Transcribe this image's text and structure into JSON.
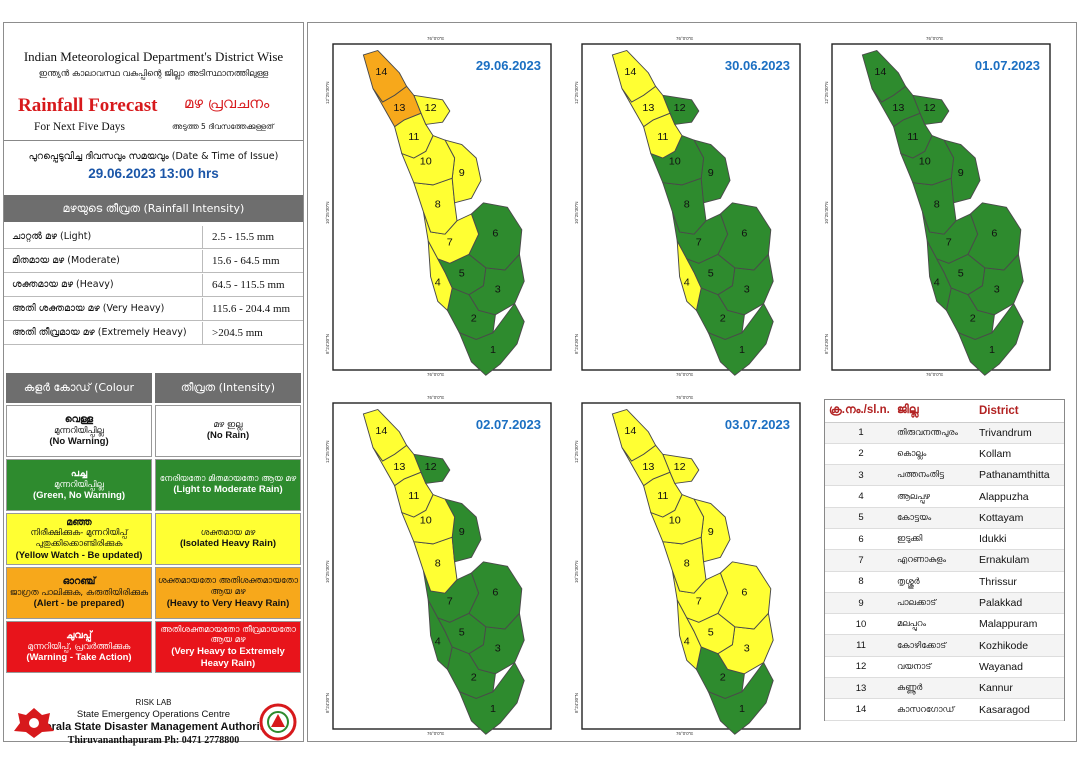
{
  "header": {
    "title": "Indian Meteorological Department's District Wise",
    "title_ml": "ഇന്ത്യൻ കാലാവസ്ഥ വകുപ്പിന്റെ ജില്ലാ അടിസ്ഥാനത്തിലുള്ള",
    "rainfall_forecast": "Rainfall Forecast",
    "rainfall_forecast_ml": "മഴ പ്രവചനം",
    "next_days": "For Next Five Days",
    "next_days_ml": "അടുത്ത 5 ദിവസത്തേക്കുള്ളത്"
  },
  "issue": {
    "label": "പുറപ്പെടുവിച്ച ദിവസവും സമയവും (Date & Time of Issue)",
    "value": "29.06.2023 13:00 hrs"
  },
  "intensity": {
    "title": "മഴയുടെ തീവ്രത (Rainfall Intensity)",
    "rows": [
      {
        "name": "ചാറ്റൽ മഴ (Light)",
        "range": "2.5 - 15.5 mm"
      },
      {
        "name": "മിതമായ മഴ (Moderate)",
        "range": "15.6 - 64.5 mm"
      },
      {
        "name": "ശക്തമായ മഴ (Heavy)",
        "range": "64.5 - 115.5 mm"
      },
      {
        "name": "അതി ശക്തമായ മഴ (Very Heavy)",
        "range": "115.6 - 204.4 mm"
      },
      {
        "name": "അതി തീവ്രമായ മഴ (Extremely Heavy)",
        "range": ">204.5 mm"
      }
    ]
  },
  "colour_code": {
    "left_head": "കളർ കോഡ് (Colour Code)",
    "right_head": "തീവ്രത (Intensity)",
    "rows": [
      {
        "color": "#ffffff",
        "text_color": "#111111",
        "c1": "വെള്ള",
        "c2": "മുന്നറിയിപ്പില്ല",
        "c3": "(No Warning)",
        "i1": "മഴ ഇല്ല",
        "i2": "(No Rain)"
      },
      {
        "color": "#2e8b2e",
        "text_color": "#ffffff",
        "c1": "പച്ച",
        "c2": "മുന്നറിയിപ്പില്ല",
        "c3": "(Green, No Warning)",
        "i1": "നേരിയതോ മിതമായതോ ആയ മഴ",
        "i2": "(Light to Moderate Rain)"
      },
      {
        "color": "#ffff33",
        "text_color": "#111111",
        "c1": "മഞ്ഞ",
        "c2": "നിരീക്ഷിക്കുക- മുന്നറിയിപ്പ് പുതുക്കിക്കൊണ്ടിരിക്കുക",
        "c3": "(Yellow Watch - Be updated)",
        "i1": "ശക്തമായ മഴ",
        "i2": "(Isolated Heavy Rain)"
      },
      {
        "color": "#f7a81b",
        "text_color": "#111111",
        "c1": "ഓറഞ്ച്",
        "c2": "ജാഗ്രത പാലിക്കുക, കരുതിയിരിക്കുക",
        "c3": "(Alert - be prepared)",
        "i1": "ശക്തമായതോ അതിശക്തമായതോ ആയ മഴ",
        "i2": "(Heavy to Very Heavy Rain)"
      },
      {
        "color": "#e8141b",
        "text_color": "#ffffff",
        "c1": "ചുവപ്പ്",
        "c2": "മുന്നറിയിപ്പ്, പ്രവർത്തിക്കുക",
        "c3": "(Warning - Take Action)",
        "i1": "അതിശക്തമായതോ തീവ്രമായതോ ആയ മഴ",
        "i2": "(Very Heavy to Extremely Heavy Rain)"
      }
    ]
  },
  "footer": {
    "risk_lab": "RISK LAB",
    "seoc": "State Emergency Operations Centre",
    "ksdma": "Kerala State Disaster Management Authority",
    "address": "Thiruvananthapuram Ph: 0471 2778800"
  },
  "coords": {
    "lon_top": "76°0'0\"E",
    "lon_bottom": "76°0'0\"E",
    "lat_a": "12°25'30\"N",
    "lat_b": "10°25'30\"N",
    "lat_c": "8°24'30\"N"
  },
  "colors": {
    "green": "#2e8b2e",
    "yellow": "#ffff33",
    "orange": "#f7a81b",
    "white": "#ffffff"
  },
  "maps": [
    {
      "date": "29.06.2023",
      "colors": {
        "1": "green",
        "2": "green",
        "3": "green",
        "4": "yellow",
        "5": "green",
        "6": "green",
        "7": "yellow",
        "8": "yellow",
        "9": "yellow",
        "10": "yellow",
        "11": "yellow",
        "12": "yellow",
        "13": "orange",
        "14": "orange"
      }
    },
    {
      "date": "30.06.2023",
      "colors": {
        "1": "green",
        "2": "green",
        "3": "green",
        "4": "yellow",
        "5": "green",
        "6": "green",
        "7": "green",
        "8": "green",
        "9": "green",
        "10": "green",
        "11": "yellow",
        "12": "green",
        "13": "yellow",
        "14": "yellow"
      }
    },
    {
      "date": "01.07.2023",
      "colors": {
        "1": "green",
        "2": "green",
        "3": "green",
        "4": "green",
        "5": "green",
        "6": "green",
        "7": "green",
        "8": "green",
        "9": "green",
        "10": "green",
        "11": "green",
        "12": "green",
        "13": "green",
        "14": "green"
      }
    },
    {
      "date": "02.07.2023",
      "colors": {
        "1": "green",
        "2": "green",
        "3": "green",
        "4": "green",
        "5": "green",
        "6": "green",
        "7": "green",
        "8": "yellow",
        "9": "green",
        "10": "yellow",
        "11": "yellow",
        "12": "green",
        "13": "yellow",
        "14": "yellow"
      }
    },
    {
      "date": "03.07.2023",
      "colors": {
        "1": "green",
        "2": "green",
        "3": "yellow",
        "4": "yellow",
        "5": "yellow",
        "6": "yellow",
        "7": "yellow",
        "8": "yellow",
        "9": "yellow",
        "10": "yellow",
        "11": "yellow",
        "12": "yellow",
        "13": "yellow",
        "14": "yellow"
      }
    }
  ],
  "districts": {
    "headers": {
      "no": "ക്ര.നം./sl.n.",
      "ml": "ജില്ല",
      "en": "District"
    },
    "rows": [
      {
        "no": "1",
        "ml": "തിരുവനന്തപുരം",
        "en": "Trivandrum"
      },
      {
        "no": "2",
        "ml": "കൊല്ലം",
        "en": "Kollam"
      },
      {
        "no": "3",
        "ml": "പത്തനംതിട്ട",
        "en": "Pathanamthitta"
      },
      {
        "no": "4",
        "ml": "ആലപ്പുഴ",
        "en": "Alappuzha"
      },
      {
        "no": "5",
        "ml": "കോട്ടയം",
        "en": "Kottayam"
      },
      {
        "no": "6",
        "ml": "ഇടുക്കി",
        "en": "Idukki"
      },
      {
        "no": "7",
        "ml": "എറണാകുളം",
        "en": "Ernakulam"
      },
      {
        "no": "8",
        "ml": "തൃശ്ശൂർ",
        "en": "Thrissur"
      },
      {
        "no": "9",
        "ml": "പാലക്കാട്",
        "en": "Palakkad"
      },
      {
        "no": "10",
        "ml": "മലപ്പുറം",
        "en": "Malappuram"
      },
      {
        "no": "11",
        "ml": "കോഴിക്കോട്",
        "en": "Kozhikode"
      },
      {
        "no": "12",
        "ml": "വയനാട്",
        "en": "Wayanad"
      },
      {
        "no": "13",
        "ml": "കണ്ണൂർ",
        "en": "Kannur"
      },
      {
        "no": "14",
        "ml": "കാസറഗോഡ്",
        "en": "Kasaragod"
      }
    ]
  }
}
